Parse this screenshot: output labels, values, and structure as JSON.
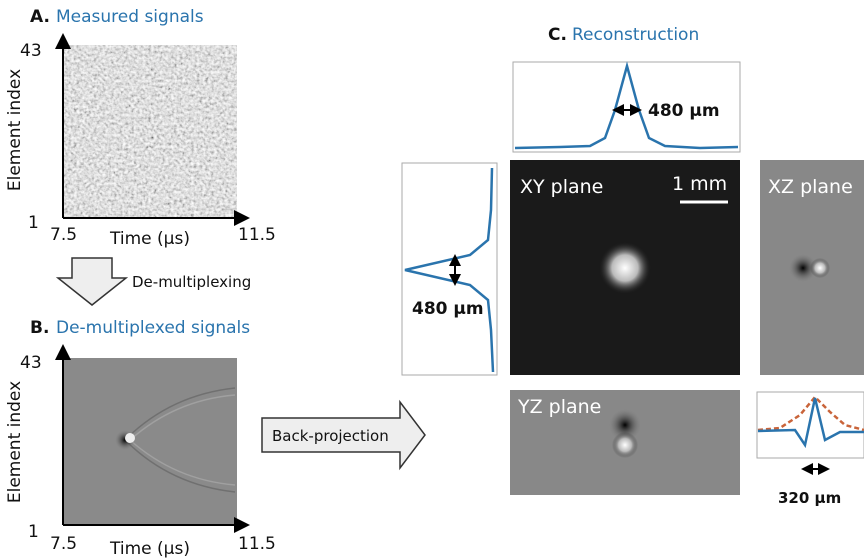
{
  "panel_a": {
    "label": "A.",
    "title": "Measured signals",
    "y_label": "Element index",
    "y_top": "43",
    "y_bottom": "1",
    "x_left": "7.5",
    "x_label": "Time (μs)",
    "x_right": "11.5"
  },
  "arrow_a_b": {
    "label": "De-multiplexing"
  },
  "panel_b": {
    "label": "B.",
    "title": "De-multiplexed signals",
    "y_label": "Element index",
    "y_top": "43",
    "y_bottom": "1",
    "x_left": "7.5",
    "x_label": "Time (μs)",
    "x_right": "11.5"
  },
  "arrow_b_c": {
    "label": "Back-projection"
  },
  "panel_c": {
    "label": "C.",
    "title": "Reconstruction",
    "top_profile_width": "480 μm",
    "left_profile_width": "480 μm",
    "xy_plane": "XY plane",
    "scale_bar": "1 mm",
    "xz_plane": "XZ plane",
    "yz_plane": "YZ plane",
    "bottom_profile_width": "320 μm"
  }
}
